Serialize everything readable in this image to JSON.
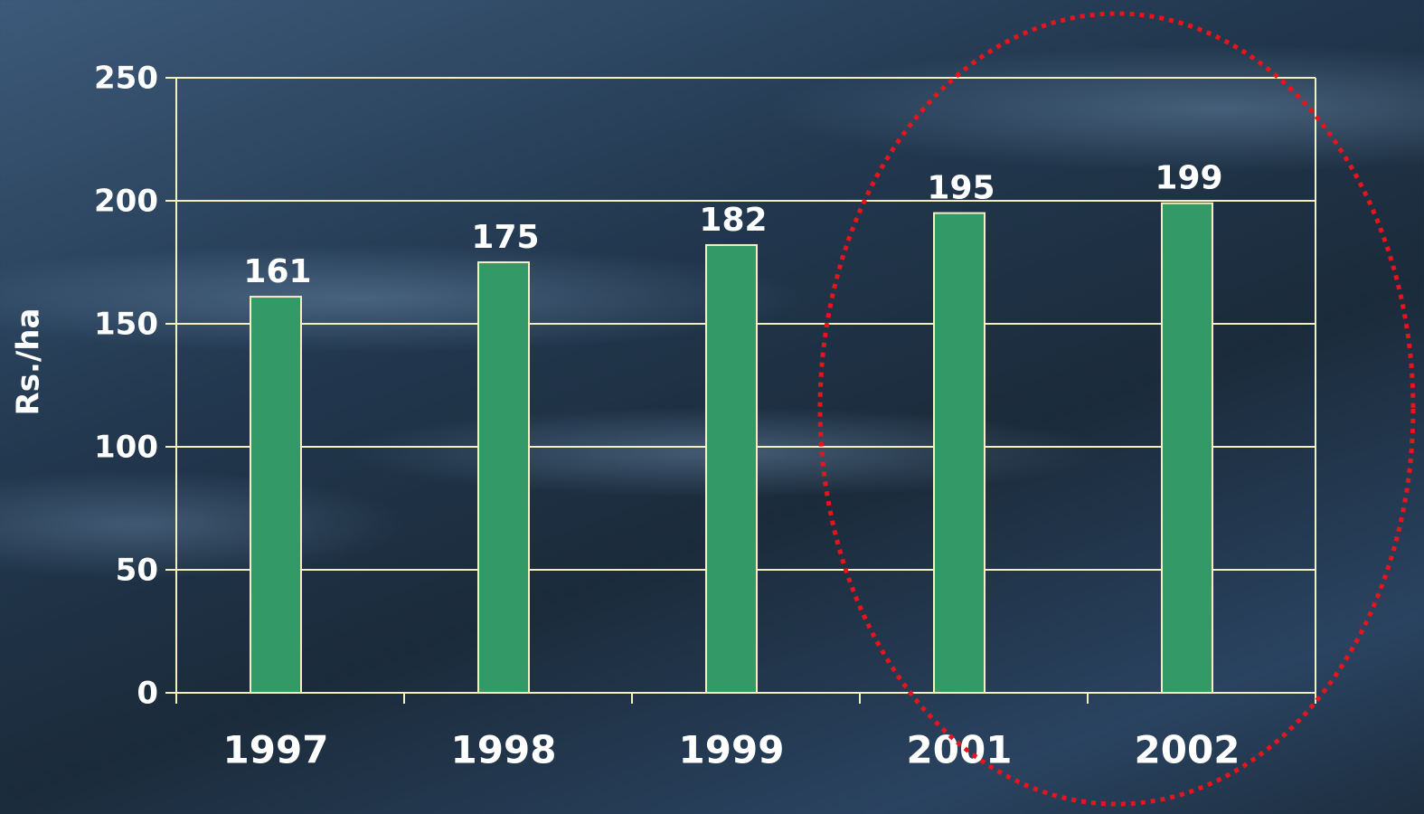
{
  "chart_data": {
    "type": "bar",
    "y_label": "Rs./ha",
    "categories": [
      "1997",
      "1998",
      "1999",
      "2001",
      "2002"
    ],
    "values": [
      161,
      175,
      182,
      195,
      199
    ],
    "color": "#339966",
    "ylim": [
      0,
      250
    ],
    "yticks": [
      0,
      50,
      100,
      150,
      200,
      250
    ],
    "grid": true
  }
}
